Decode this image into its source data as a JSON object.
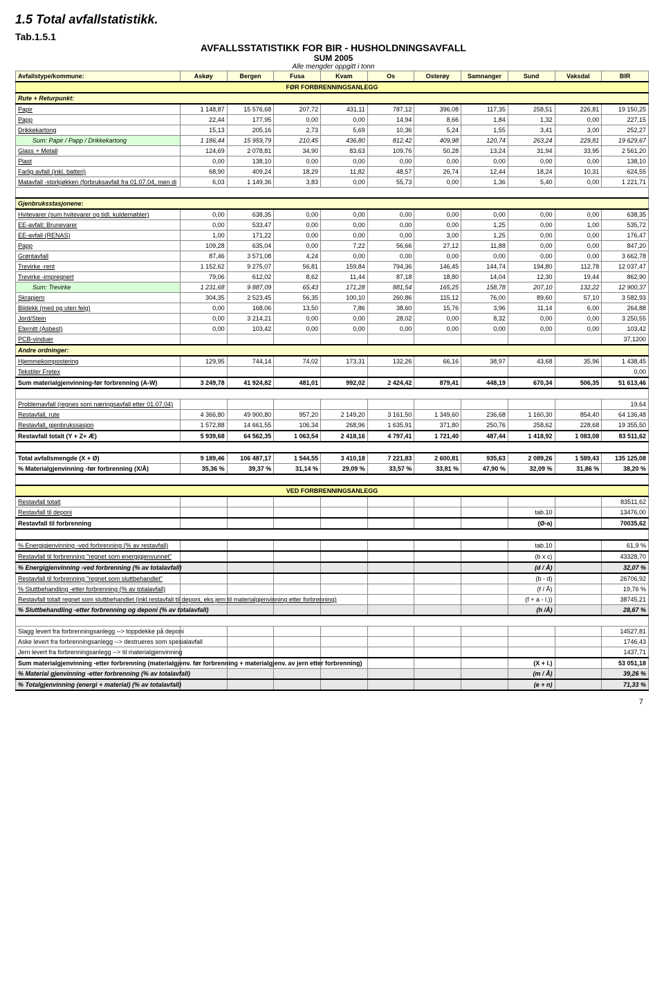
{
  "doc": {
    "section_number": "1.5",
    "section_title": "Total avfallstatistikk.",
    "tab_ref": "Tab.1.5.1",
    "title_line1": "AVFALLSSTATISTIKK FOR BIR - HUSHOLDNINGSAVFALL",
    "title_line2": "SUM 2005",
    "note": "Alle mengder oppgitt i tonn",
    "page_number": "7"
  },
  "columns": [
    "Avfallstype/kommune:",
    "Askøy",
    "Bergen",
    "Fusa",
    "Kvam",
    "Os",
    "Osterøy",
    "Samnanger",
    "Sund",
    "Vaksdal",
    "BIR"
  ],
  "banners": {
    "before": "FØR FORBRENNINGSANLEGG",
    "after": "VED FORBRENNINGSANLEGG"
  },
  "sections": {
    "rute": "Rute + Returpunkt:",
    "gjen": "Gjenbruksstasjonene:",
    "andre": "Andre ordninger:"
  },
  "rows": [
    {
      "k": "rute",
      "type": "section"
    },
    {
      "label": "Papir",
      "vals": [
        "1 148,87",
        "15 576,68",
        "207,72",
        "431,11",
        "787,12",
        "396,08",
        "117,35",
        "258,51",
        "226,81",
        "19 150,25"
      ],
      "under": true
    },
    {
      "label": "Papp",
      "vals": [
        "22,44",
        "177,95",
        "0,00",
        "0,00",
        "14,94",
        "8,66",
        "1,84",
        "1,32",
        "0,00",
        "227,15"
      ],
      "under": true
    },
    {
      "label": "Drikkekartong",
      "vals": [
        "15,13",
        "205,16",
        "2,73",
        "5,69",
        "10,36",
        "5,24",
        "1,55",
        "3,41",
        "3,00",
        "252,27"
      ],
      "under": true
    },
    {
      "label": "Sum:  Papir / Papp / Drikkekartong",
      "vals": [
        "1 186,44",
        "15 959,79",
        "210,45",
        "436,80",
        "812,42",
        "409,98",
        "120,74",
        "263,24",
        "229,81",
        "19 629,67"
      ],
      "green": true,
      "indent": true
    },
    {
      "label": "Glass + Metall",
      "vals": [
        "124,69",
        "2 078,81",
        "34,90",
        "83,63",
        "109,76",
        "50,28",
        "13,24",
        "31,94",
        "33,95",
        "2 561,20"
      ],
      "under": true
    },
    {
      "label": "Plast",
      "vals": [
        "0,00",
        "138,10",
        "0,00",
        "0,00",
        "0,00",
        "0,00",
        "0,00",
        "0,00",
        "0,00",
        "138,10"
      ],
      "under": true
    },
    {
      "label": "Farlig avfall  (inkl. batteri)",
      "vals": [
        "68,90",
        "409,24",
        "18,29",
        "11,82",
        "48,57",
        "26,74",
        "12,44",
        "18,24",
        "10,31",
        "624,55"
      ],
      "under": true
    },
    {
      "label": "Matavfall -storkjøkken (forbruksavfall fra 01.07.04, men di",
      "vals": [
        "6,03",
        "1 149,36",
        "3,83",
        "0,00",
        "55,73",
        "0,00",
        "1,36",
        "5,40",
        "0,00",
        "1 221,71"
      ],
      "under": true
    },
    {
      "type": "spacer"
    },
    {
      "k": "gjen",
      "type": "section"
    },
    {
      "label": "Hvitevarer (sum hvitevarer og tidl. kuldemøbler)",
      "vals": [
        "0,00",
        "638,35",
        "0,00",
        "0,00",
        "0,00",
        "0,00",
        "0,00",
        "0,00",
        "0,00",
        "638,35"
      ],
      "under": true
    },
    {
      "label": "EE-avfall; Brunevarer",
      "vals": [
        "0,00",
        "533,47",
        "0,00",
        "0,00",
        "0,00",
        "0,00",
        "1,25",
        "0,00",
        "1,00",
        "535,72"
      ],
      "under": true
    },
    {
      "label": "EE-avfall (RENAS)",
      "vals": [
        "1,00",
        "171,22",
        "0,00",
        "0,00",
        "0,00",
        "3,00",
        "1,25",
        "0,00",
        "0,00",
        "176,47"
      ],
      "under": true
    },
    {
      "label": "Papp",
      "vals": [
        "109,28",
        "635,04",
        "0,00",
        "7,22",
        "56,66",
        "27,12",
        "11,88",
        "0,00",
        "0,00",
        "847,20"
      ],
      "under": true
    },
    {
      "label": "Grøntavfall",
      "vals": [
        "87,46",
        "3 571,08",
        "4,24",
        "0,00",
        "0,00",
        "0,00",
        "0,00",
        "0,00",
        "0,00",
        "3 662,78"
      ],
      "under": true
    },
    {
      "label": "Trevirke -rent",
      "vals": [
        "1 152,62",
        "9 275,07",
        "56,81",
        "159,84",
        "794,36",
        "146,45",
        "144,74",
        "194,80",
        "112,78",
        "12 037,47"
      ],
      "under": true
    },
    {
      "label": "Trevirke -impregnert",
      "vals": [
        "79,06",
        "612,02",
        "8,62",
        "11,44",
        "87,18",
        "18,80",
        "14,04",
        "12,30",
        "19,44",
        "862,90"
      ],
      "under": true
    },
    {
      "label": "Sum: Trevirke",
      "vals": [
        "1 231,68",
        "9 887,09",
        "65,43",
        "171,28",
        "881,54",
        "165,25",
        "158,78",
        "207,10",
        "132,22",
        "12 900,37"
      ],
      "green": true,
      "indent": true
    },
    {
      "label": "Skrapjern",
      "vals": [
        "304,35",
        "2 523,45",
        "56,35",
        "100,10",
        "260,86",
        "115,12",
        "76,00",
        "89,60",
        "57,10",
        "3 582,93"
      ],
      "under": true
    },
    {
      "label": "Bildekk (med og uten felg)",
      "vals": [
        "0,00",
        "168,06",
        "13,50",
        "7,86",
        "38,60",
        "15,76",
        "3,96",
        "11,14",
        "6,00",
        "264,88"
      ],
      "under": true
    },
    {
      "label": "Jord/Stein",
      "vals": [
        "0,00",
        "3 214,21",
        "0,00",
        "0,00",
        "28,02",
        "0,00",
        "8,32",
        "0,00",
        "0,00",
        "3 250,55"
      ],
      "under": true
    },
    {
      "label": "Eternitt (Asbest)",
      "vals": [
        "0,00",
        "103,42",
        "0,00",
        "0,00",
        "0,00",
        "0,00",
        "0,00",
        "0,00",
        "0,00",
        "103,42"
      ],
      "under": true
    },
    {
      "label": "PCB-vinduer",
      "vals": [
        "",
        "",
        "",
        "",
        "",
        "",
        "",
        "",
        "",
        "37,1200"
      ],
      "under": true
    },
    {
      "k": "andre",
      "type": "section"
    },
    {
      "label": "Hjemmekompostering",
      "vals": [
        "129,95",
        "744,14",
        "74,02",
        "173,31",
        "132,26",
        "66,16",
        "38,97",
        "43,68",
        "35,96",
        "1 438,45"
      ],
      "under": true
    },
    {
      "label": "Tekstiler Fretex",
      "vals": [
        "",
        "",
        "",
        "",
        "",
        "",
        "",
        "",
        "",
        "0,00"
      ],
      "under": true
    },
    {
      "label": "Sum materialgjenvinning-før forbrenning (A-W)",
      "vals": [
        "3 249,78",
        "41 924,82",
        "481,01",
        "992,02",
        "2 424,42",
        "879,41",
        "448,19",
        "670,34",
        "506,35",
        "51 613,46"
      ],
      "bold": true,
      "thicktop": true,
      "thickbot": true
    },
    {
      "type": "spacer"
    },
    {
      "label": "Problemavfall (regnes som næringsavfall etter 01.07.04)",
      "vals": [
        "",
        "",
        "",
        "",
        "",
        "",
        "",
        "",
        "",
        "19,64"
      ],
      "under": true
    },
    {
      "label": "Restavfall,    rute",
      "vals": [
        "4 366,80",
        "49 900,80",
        "957,20",
        "2 149,20",
        "3 161,50",
        "1 349,60",
        "236,68",
        "1 160,30",
        "854,40",
        "64 136,48"
      ],
      "under": true
    },
    {
      "label": "Restavfall,  gjenbrukssasjon",
      "vals": [
        "1 572,88",
        "14 661,55",
        "106,34",
        "268,96",
        "1 635,91",
        "371,80",
        "250,76",
        "258,62",
        "228,68",
        "19 355,50"
      ],
      "under": true
    },
    {
      "label": "Restavfall  totalt  (Y + Z+ Æ)",
      "vals": [
        "5 939,68",
        "64 562,35",
        "1 063,54",
        "2 418,16",
        "4 797,41",
        "1 721,40",
        "487,44",
        "1 418,92",
        "1 083,08",
        "83 511,62"
      ],
      "bold": true,
      "thicktop": true,
      "thickbot": true
    },
    {
      "type": "spacer"
    },
    {
      "label": "Total avfallsmengde (X + Ø)",
      "vals": [
        "9 189,46",
        "106 487,17",
        "1 544,55",
        "3 410,18",
        "7 221,83",
        "2 600,81",
        "935,63",
        "2 089,26",
        "1 589,43",
        "135 125,08"
      ],
      "bold": true,
      "thicktop": true
    },
    {
      "label": "% Materialgjenvinning -før forbrenning  (X/Å)",
      "vals": [
        "35,36 %",
        "39,37 %",
        "31,14 %",
        "29,09 %",
        "33,57 %",
        "33,81 %",
        "47,90 %",
        "32,09 %",
        "31,86 %",
        "38,20 %"
      ],
      "bold": true,
      "thickbot": true
    },
    {
      "type": "spacer"
    },
    {
      "k": "after",
      "type": "banner"
    },
    {
      "label": "Restavfall totalt",
      "vals": [
        "",
        "",
        "",
        "",
        "",
        "",
        "",
        "",
        "",
        "83511,62"
      ],
      "under": true
    },
    {
      "label": "Restavfall til deponi",
      "vals": [
        "",
        "",
        "",
        "",
        "",
        "",
        "",
        "tab.10",
        "",
        "13476,00"
      ],
      "under": true,
      "thickbot": true
    },
    {
      "label": "Restavfall til forbrenning",
      "vals": [
        "",
        "",
        "",
        "",
        "",
        "",
        "",
        "(Ø-a)",
        "",
        "70035,62"
      ],
      "bold": true,
      "thickbot": true
    },
    {
      "type": "spacer"
    },
    {
      "label": " % Energigjenvinning  -ved forbrenning     (% av restavfall)",
      "vals": [
        "",
        "",
        "",
        "",
        "",
        "",
        "",
        "tab.10",
        "",
        "61,9 %"
      ],
      "under": true,
      "thicktop": true
    },
    {
      "label": "Restavfall til forbrenning \"regnet som energigjenvunnet\"",
      "vals": [
        "",
        "",
        "",
        "",
        "",
        "",
        "",
        "(b x c)",
        "",
        "43328,70"
      ],
      "under": true,
      "thicktop": true,
      "thickbot": true
    },
    {
      "label": " % Energigjenvinning  -ved forbrenning     (% av totalavfall)",
      "vals": [
        "",
        "",
        "",
        "",
        "",
        "",
        "",
        "(d / Å)",
        "",
        "32,07 %"
      ],
      "shade": true,
      "bold": true,
      "thickbot": true
    },
    {
      "label": "Restavfall til forbrenning \"regnet som sluttbehandlet\"",
      "vals": [
        "",
        "",
        "",
        "",
        "",
        "",
        "",
        "(b - d)",
        "",
        "26706,92"
      ],
      "under": true,
      "thicktop": true
    },
    {
      "label": "% Sluttbehandling -etter forbrenning     (% av totalavfall)",
      "vals": [
        "",
        "",
        "",
        "",
        "",
        "",
        "",
        "(f / Å)",
        "",
        "19,76 %"
      ],
      "under": true
    },
    {
      "label": "Restavfall totalt regnet som sluttbehandlet (inkl.restavfall til deponi, eks.jern til materialgjenvinning etter forbrenning)",
      "vals": [
        "",
        "",
        "",
        "",
        "",
        "",
        "",
        "(f + a - l.))",
        "",
        "38745,21"
      ],
      "under": true
    },
    {
      "label": " % Sluttbehandling -etter forbrenning og deponi    (% av totalavfall)",
      "vals": [
        "",
        "",
        "",
        "",
        "",
        "",
        "",
        "(h /Å)",
        "",
        "28,67 %"
      ],
      "shade": true,
      "bold": true,
      "thickbot": true
    },
    {
      "type": "spacer"
    },
    {
      "label": "Slagg levert fra forbrenningsanlegg --> toppdekke på deponi",
      "vals": [
        "",
        "",
        "",
        "",
        "",
        "",
        "",
        "",
        "",
        "14527,81"
      ]
    },
    {
      "label": "Aske levert fra forbrenningsanlegg --> destrueres som spesialavfall",
      "vals": [
        "",
        "",
        "",
        "",
        "",
        "",
        "",
        "",
        "",
        "1746,43"
      ]
    },
    {
      "label": "Jern levert fra forbrenningsanlegg --> til materialgjenvinning",
      "vals": [
        "",
        "",
        "",
        "",
        "",
        "",
        "",
        "",
        "",
        "1437,71"
      ],
      "thickbot": true
    },
    {
      "label": "Sum materialgjenvinning -etter forbrenning (materialgjenv. før forbrenning + materialgjenv. av jern etter forbrenning)",
      "vals": [
        "",
        "",
        "",
        "",
        "",
        "",
        "",
        "(X + l.)",
        "",
        "53 051,18"
      ],
      "bold": true,
      "thicktop": true
    },
    {
      "label": "% Material gjenvinning  -etter forbrenning    (% av totalavfall)",
      "vals": [
        "",
        "",
        "",
        "",
        "",
        "",
        "",
        "(m / Å)",
        "",
        "39,26 %"
      ],
      "shade": true,
      "bold": true,
      "thickbot": true
    },
    {
      "label": "% Totalgjenvinning (energi + material)       (% av totalavfall)",
      "vals": [
        "",
        "",
        "",
        "",
        "",
        "",
        "",
        "(e + n)",
        "",
        "71,33 %"
      ],
      "shade": true,
      "bold": true,
      "thicktop": true,
      "thickbot": true
    }
  ]
}
